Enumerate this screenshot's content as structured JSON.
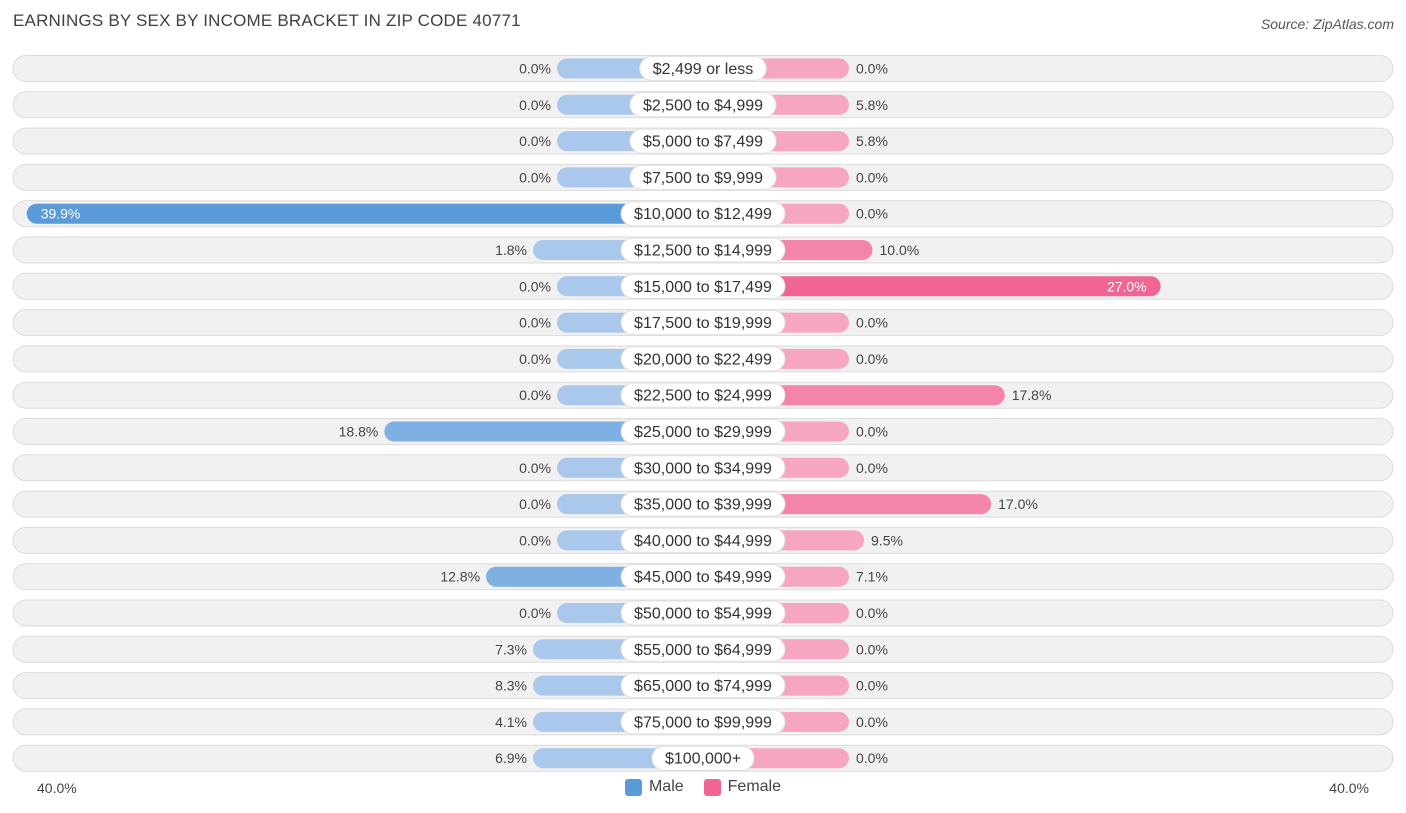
{
  "header": {
    "title": "EARNINGS BY SEX BY INCOME BRACKET IN ZIP CODE 40771",
    "source": "Source: ZipAtlas.com"
  },
  "colors": {
    "male_strong": "#5b9ad8",
    "male_light": "#a9c8eb",
    "female_strong": "#f06592",
    "female_light": "#f6a6c0",
    "row_bg": "#f1f1f1",
    "row_border": "#dcdcdc"
  },
  "legend": {
    "male_label": "Male",
    "female_label": "Female"
  },
  "axis": {
    "left_label": "40.0%",
    "right_label": "40.0%"
  },
  "chart_data": {
    "type": "bar",
    "orientation": "horizontal-diverging",
    "title": "EARNINGS BY SEX BY INCOME BRACKET IN ZIP CODE 40771",
    "xlim": [
      -40,
      40
    ],
    "categories": [
      "$2,499 or less",
      "$2,500 to $4,999",
      "$5,000 to $7,499",
      "$7,500 to $9,999",
      "$10,000 to $12,499",
      "$12,500 to $14,999",
      "$15,000 to $17,499",
      "$17,500 to $19,999",
      "$20,000 to $22,499",
      "$22,500 to $24,999",
      "$25,000 to $29,999",
      "$30,000 to $34,999",
      "$35,000 to $39,999",
      "$40,000 to $44,999",
      "$45,000 to $49,999",
      "$50,000 to $54,999",
      "$55,000 to $64,999",
      "$65,000 to $74,999",
      "$75,000 to $99,999",
      "$100,000+"
    ],
    "series": [
      {
        "name": "Male",
        "values": [
          0.0,
          0.0,
          0.0,
          0.0,
          39.9,
          1.8,
          0.0,
          0.0,
          0.0,
          0.0,
          18.8,
          0.0,
          0.0,
          0.0,
          12.8,
          0.0,
          7.3,
          8.3,
          4.1,
          6.9
        ],
        "labels": [
          "0.0%",
          "0.0%",
          "0.0%",
          "0.0%",
          "39.9%",
          "1.8%",
          "0.0%",
          "0.0%",
          "0.0%",
          "0.0%",
          "18.8%",
          "0.0%",
          "0.0%",
          "0.0%",
          "12.8%",
          "0.0%",
          "7.3%",
          "8.3%",
          "4.1%",
          "6.9%"
        ]
      },
      {
        "name": "Female",
        "values": [
          0.0,
          5.8,
          5.8,
          0.0,
          0.0,
          10.0,
          27.0,
          0.0,
          0.0,
          17.8,
          0.0,
          0.0,
          17.0,
          9.5,
          7.1,
          0.0,
          0.0,
          0.0,
          0.0,
          0.0
        ],
        "labels": [
          "0.0%",
          "5.8%",
          "5.8%",
          "0.0%",
          "0.0%",
          "10.0%",
          "27.0%",
          "0.0%",
          "0.0%",
          "17.8%",
          "0.0%",
          "0.0%",
          "17.0%",
          "9.5%",
          "7.1%",
          "0.0%",
          "0.0%",
          "0.0%",
          "0.0%",
          "0.0%"
        ]
      }
    ]
  }
}
